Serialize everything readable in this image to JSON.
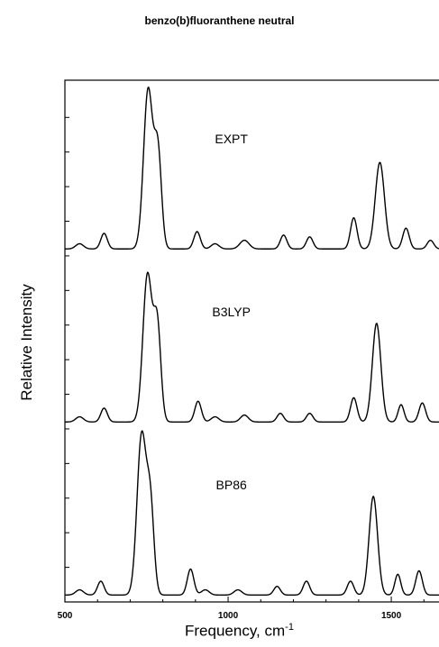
{
  "chart_data": {
    "type": "line",
    "title": "benzo(b)fluoranthene neutral",
    "xlabel": "Frequency, cm",
    "xlabel_superscript": "-1",
    "ylabel": "Relative Intensity",
    "xlim": [
      500,
      1660
    ],
    "ylim": [
      0,
      3
    ],
    "x_ticks": [
      500,
      1000,
      1500
    ],
    "x_tick_labels": [
      "500",
      "1000",
      "1500"
    ],
    "grid": false,
    "series": [
      {
        "name": "EXPT",
        "offset": 2,
        "peaks": [
          {
            "x": 545,
            "height": 0.03,
            "width": 12
          },
          {
            "x": 620,
            "height": 0.09,
            "width": 10
          },
          {
            "x": 755,
            "height": 0.92,
            "width": 14
          },
          {
            "x": 785,
            "height": 0.55,
            "width": 11
          },
          {
            "x": 905,
            "height": 0.1,
            "width": 10
          },
          {
            "x": 960,
            "height": 0.03,
            "width": 12
          },
          {
            "x": 1050,
            "height": 0.05,
            "width": 14
          },
          {
            "x": 1170,
            "height": 0.08,
            "width": 10
          },
          {
            "x": 1250,
            "height": 0.07,
            "width": 10
          },
          {
            "x": 1385,
            "height": 0.18,
            "width": 10
          },
          {
            "x": 1465,
            "height": 0.5,
            "width": 14
          },
          {
            "x": 1545,
            "height": 0.12,
            "width": 10
          },
          {
            "x": 1620,
            "height": 0.05,
            "width": 10
          }
        ]
      },
      {
        "name": "B3LYP",
        "offset": 1,
        "peaks": [
          {
            "x": 545,
            "height": 0.03,
            "width": 12
          },
          {
            "x": 620,
            "height": 0.08,
            "width": 10
          },
          {
            "x": 753,
            "height": 0.85,
            "width": 14
          },
          {
            "x": 783,
            "height": 0.55,
            "width": 11
          },
          {
            "x": 908,
            "height": 0.12,
            "width": 10
          },
          {
            "x": 960,
            "height": 0.03,
            "width": 12
          },
          {
            "x": 1050,
            "height": 0.04,
            "width": 12
          },
          {
            "x": 1160,
            "height": 0.05,
            "width": 10
          },
          {
            "x": 1250,
            "height": 0.05,
            "width": 10
          },
          {
            "x": 1385,
            "height": 0.14,
            "width": 10
          },
          {
            "x": 1455,
            "height": 0.57,
            "width": 13
          },
          {
            "x": 1530,
            "height": 0.1,
            "width": 9
          },
          {
            "x": 1595,
            "height": 0.11,
            "width": 10
          }
        ]
      },
      {
        "name": "BP86",
        "offset": 0,
        "peaks": [
          {
            "x": 545,
            "height": 0.03,
            "width": 12
          },
          {
            "x": 610,
            "height": 0.08,
            "width": 10
          },
          {
            "x": 735,
            "height": 0.92,
            "width": 14
          },
          {
            "x": 762,
            "height": 0.5,
            "width": 11
          },
          {
            "x": 885,
            "height": 0.15,
            "width": 10
          },
          {
            "x": 930,
            "height": 0.03,
            "width": 12
          },
          {
            "x": 1030,
            "height": 0.03,
            "width": 12
          },
          {
            "x": 1150,
            "height": 0.05,
            "width": 10
          },
          {
            "x": 1240,
            "height": 0.08,
            "width": 10
          },
          {
            "x": 1375,
            "height": 0.08,
            "width": 10
          },
          {
            "x": 1445,
            "height": 0.57,
            "width": 13
          },
          {
            "x": 1520,
            "height": 0.12,
            "width": 9
          },
          {
            "x": 1585,
            "height": 0.14,
            "width": 10
          }
        ]
      }
    ]
  }
}
